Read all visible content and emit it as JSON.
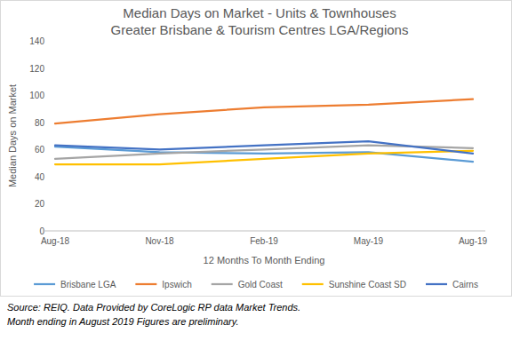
{
  "chart_data": {
    "type": "line",
    "title": "Median Days on Market -  Units & Townhouses",
    "subtitle": "Greater Brisbane & Tourism Centres LGA/Regions",
    "x_label": "12 Months To Month Ending",
    "y_label": "Median Days on Market",
    "categories": [
      "Aug-18",
      "Nov-18",
      "Feb-19",
      "May-19",
      "Aug-19"
    ],
    "series": [
      {
        "name": "Brisbane LGA",
        "color": "#5b9bd5",
        "values": [
          62,
          58,
          57,
          58,
          51
        ]
      },
      {
        "name": "Ipswich",
        "color": "#ed7d31",
        "values": [
          79,
          86,
          91,
          93,
          97
        ]
      },
      {
        "name": "Gold Coast",
        "color": "#a5a5a5",
        "values": [
          53,
          57,
          60,
          63,
          61
        ]
      },
      {
        "name": "Sunshine Coast SD",
        "color": "#ffc000",
        "values": [
          49,
          49,
          53,
          57,
          59
        ]
      },
      {
        "name": "Cairns",
        "color": "#4472c4",
        "values": [
          63,
          60,
          63,
          66,
          57
        ]
      }
    ],
    "ylim": [
      0,
      140
    ],
    "yticks": [
      0,
      20,
      40,
      60,
      80,
      100,
      120,
      140
    ],
    "grid": false,
    "legend": "bottom",
    "annotations": [
      "Source: REIQ. Data Provided by CoreLogic RP data Market Trends.",
      "Month ending in August 2019 Figures are preliminary."
    ]
  }
}
